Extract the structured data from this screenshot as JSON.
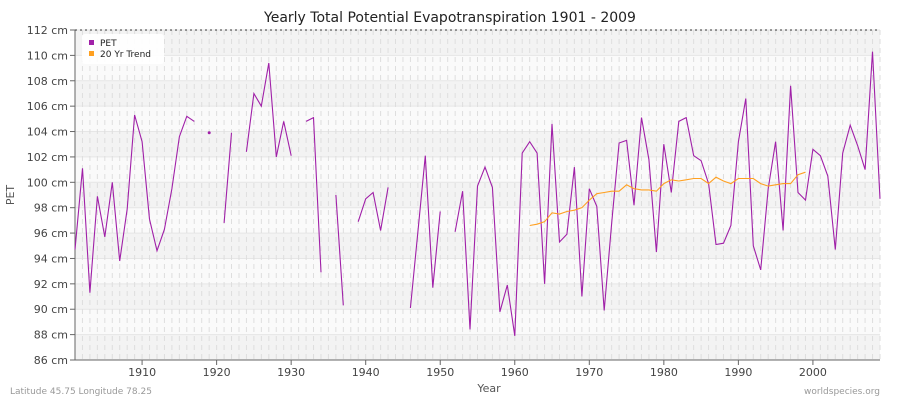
{
  "chart_data": {
    "type": "line",
    "title": "Yearly Total Potential Evapotranspiration 1901 - 2009",
    "xlabel": "Year",
    "ylabel": "PET",
    "xlim": [
      1901,
      2009
    ],
    "ylim": [
      86,
      112
    ],
    "y_unit": "cm",
    "x_ticks": [
      1910,
      1920,
      1930,
      1940,
      1950,
      1960,
      1970,
      1980,
      1990,
      2000
    ],
    "y_ticks": [
      86,
      88,
      90,
      92,
      94,
      96,
      98,
      100,
      102,
      104,
      106,
      108,
      110,
      112
    ],
    "y_tick_labels": [
      "86 cm",
      "88 cm",
      "90 cm",
      "92 cm",
      "94 cm",
      "96 cm",
      "98 cm",
      "100 cm",
      "102 cm",
      "104 cm",
      "106 cm",
      "108 cm",
      "110 cm",
      "112 cm"
    ],
    "grid": true,
    "legend_position": "top-left",
    "series": [
      {
        "name": "PET",
        "color": "#a020a8",
        "start_year": 1901,
        "values": [
          94.7,
          101.1,
          91.3,
          98.9,
          95.7,
          100.0,
          93.8,
          97.9,
          105.3,
          103.2,
          97.1,
          94.6,
          96.3,
          99.5,
          103.6,
          105.2,
          104.8,
          null,
          103.9,
          null,
          96.8,
          103.9,
          null,
          102.4,
          107.0,
          106.0,
          109.4,
          102.0,
          104.8,
          102.1,
          null,
          104.8,
          105.1,
          92.9,
          null,
          99.0,
          90.3,
          null,
          96.9,
          98.7,
          99.2,
          96.2,
          99.6,
          null,
          null,
          90.1,
          96.1,
          102.1,
          91.7,
          97.7,
          null,
          96.1,
          99.3,
          88.4,
          99.7,
          101.2,
          99.6,
          89.8,
          91.9,
          87.9,
          102.3,
          103.2,
          102.3,
          92.0,
          104.6,
          95.3,
          95.9,
          101.2,
          91.0,
          99.5,
          98.1,
          89.9,
          96.8,
          103.1,
          103.3,
          98.2,
          105.1,
          101.8,
          94.5,
          103.0,
          99.2,
          104.8,
          105.1,
          102.1,
          101.7,
          99.9,
          95.1,
          95.2,
          96.6,
          103.2,
          106.6,
          95.0,
          93.1,
          99.5,
          103.2,
          96.2,
          107.6,
          99.2,
          98.6,
          102.6,
          102.1,
          100.5,
          94.7,
          102.3,
          104.5,
          102.9,
          101.0,
          110.3,
          98.7
        ]
      },
      {
        "name": "20 Yr Trend",
        "color": "#ffa020",
        "start_year": 1962,
        "values": [
          96.6,
          96.7,
          96.9,
          97.6,
          97.5,
          97.7,
          97.8,
          98.0,
          98.6,
          99.1,
          99.2,
          99.3,
          99.3,
          99.8,
          99.5,
          99.4,
          99.4,
          99.3,
          99.9,
          100.2,
          100.1,
          100.2,
          100.3,
          100.3,
          99.9,
          100.4,
          100.1,
          99.9,
          100.3,
          100.3,
          100.3,
          99.9,
          99.7,
          99.8,
          99.9,
          99.9,
          100.6,
          100.8
        ]
      }
    ]
  },
  "footer": {
    "location": "Latitude 45.75 Longitude 78.25",
    "source": "worldspecies.org"
  }
}
